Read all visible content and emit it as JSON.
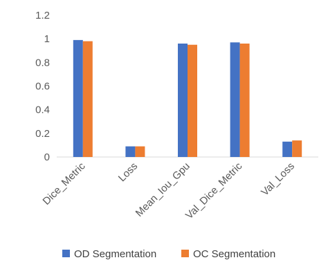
{
  "colors": {
    "od": "#4472c4",
    "oc": "#ed7d31",
    "axis": "#d9d9d9",
    "text": "#595959"
  },
  "chart_data": {
    "type": "bar",
    "title": "",
    "xlabel": "",
    "ylabel": "",
    "grid": false,
    "legend_position": "bottom",
    "categories": [
      "Dice_Metric",
      "Loss",
      "Mean_Iou_Gpu",
      "Val_Dice_Metric",
      "Val_Loss"
    ],
    "ylim": [
      0,
      1.2
    ],
    "yticks": [
      "0",
      "0.2",
      "0.4",
      "0.6",
      "0.8",
      "1",
      "1.2"
    ],
    "ytick_values": [
      0,
      0.2,
      0.4,
      0.6,
      0.8,
      1.0,
      1.2
    ],
    "series": [
      {
        "name": "OD Segmentation",
        "values": [
          0.99,
          0.09,
          0.96,
          0.97,
          0.13
        ]
      },
      {
        "name": "OC Segmentation",
        "values": [
          0.98,
          0.09,
          0.95,
          0.96,
          0.14
        ]
      }
    ]
  }
}
